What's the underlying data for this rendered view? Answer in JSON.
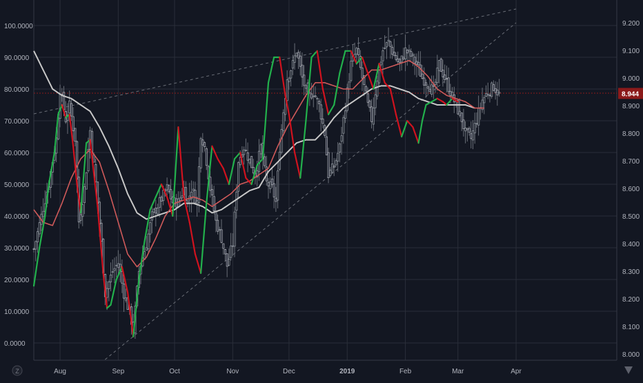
{
  "colors": {
    "background": "#131722",
    "grid": "#2a2e39",
    "axis_text": "#b2b5be",
    "up": "#26a69a",
    "down": "#ef5350",
    "osc_up": "#22b14c",
    "osc_down": "#d1121e",
    "ma_fast": "#d05a5a",
    "ma_slow": "#c8c8c8",
    "trendline": "#6b6f78",
    "hline": "#8b1a1a",
    "price_badge": "#8b1a1a"
  },
  "icons": {
    "left_corner": "z-icon",
    "right_corner": "tradingview-logo-icon"
  },
  "chart_data": {
    "type": "candlestick",
    "x_ticks": [
      {
        "label": "Aug",
        "day": 14
      },
      {
        "label": "Sep",
        "day": 45
      },
      {
        "label": "Oct",
        "day": 75
      },
      {
        "label": "Nov",
        "day": 106
      },
      {
        "label": "Dec",
        "day": 136
      },
      {
        "label": "2019",
        "day": 167,
        "bold": true
      },
      {
        "label": "Feb",
        "day": 198
      },
      {
        "label": "Mar",
        "day": 226
      },
      {
        "label": "Apr",
        "day": 257
      }
    ],
    "left_axis": {
      "ticks": [
        "100.0000",
        "90.0000",
        "80.0000",
        "70.0000",
        "60.0000",
        "50.0000",
        "40.0000",
        "30.0000",
        "20.0000",
        "10.0000",
        "0.0000"
      ],
      "range": [
        -3.5,
        104.5
      ]
    },
    "right_axis": {
      "ticks": [
        "9.200",
        "9.100",
        "9.000",
        "8.900",
        "8.800",
        "8.700",
        "8.600",
        "8.500",
        "8.400",
        "8.300",
        "8.200",
        "8.100",
        "8.000"
      ],
      "range": [
        7.97,
        9.25
      ],
      "last_price_label": "8.944",
      "last_price": 8.944
    },
    "price_anchors": [
      [
        0,
        8.38
      ],
      [
        4,
        8.5
      ],
      [
        8,
        8.62
      ],
      [
        12,
        8.78
      ],
      [
        14,
        8.96
      ],
      [
        17,
        8.85
      ],
      [
        19,
        8.9
      ],
      [
        22,
        8.78
      ],
      [
        24,
        8.48
      ],
      [
        27,
        8.6
      ],
      [
        30,
        8.81
      ],
      [
        33,
        8.62
      ],
      [
        36,
        8.4
      ],
      [
        38,
        8.22
      ],
      [
        42,
        8.3
      ],
      [
        45,
        8.33
      ],
      [
        48,
        8.22
      ],
      [
        51,
        8.15
      ],
      [
        53,
        8.09
      ],
      [
        56,
        8.3
      ],
      [
        60,
        8.4
      ],
      [
        63,
        8.5
      ],
      [
        67,
        8.55
      ],
      [
        71,
        8.6
      ],
      [
        74,
        8.55
      ],
      [
        77,
        8.55
      ],
      [
        80,
        8.6
      ],
      [
        82,
        8.55
      ],
      [
        84,
        8.6
      ],
      [
        87,
        8.55
      ],
      [
        89,
        8.8
      ],
      [
        91,
        8.75
      ],
      [
        94,
        8.6
      ],
      [
        97,
        8.48
      ],
      [
        100,
        8.42
      ],
      [
        103,
        8.32
      ],
      [
        106,
        8.4
      ],
      [
        109,
        8.7
      ],
      [
        112,
        8.75
      ],
      [
        115,
        8.7
      ],
      [
        118,
        8.65
      ],
      [
        121,
        8.75
      ],
      [
        124,
        8.62
      ],
      [
        127,
        8.6
      ],
      [
        129,
        8.55
      ],
      [
        131,
        8.75
      ],
      [
        133,
        8.88
      ],
      [
        135,
        9.0
      ],
      [
        138,
        9.05
      ],
      [
        140,
        9.1
      ],
      [
        143,
        9.0
      ],
      [
        146,
        8.93
      ],
      [
        149,
        8.95
      ],
      [
        152,
        8.9
      ],
      [
        155,
        8.8
      ],
      [
        157,
        8.65
      ],
      [
        160,
        8.68
      ],
      [
        163,
        8.75
      ],
      [
        166,
        8.9
      ],
      [
        169,
        9.05
      ],
      [
        172,
        9.1
      ],
      [
        175,
        9.0
      ],
      [
        178,
        8.9
      ],
      [
        180,
        8.85
      ],
      [
        183,
        9.0
      ],
      [
        186,
        9.1
      ],
      [
        189,
        9.13
      ],
      [
        192,
        9.08
      ],
      [
        195,
        9.05
      ],
      [
        198,
        9.1
      ],
      [
        201,
        9.08
      ],
      [
        204,
        9.05
      ],
      [
        207,
        9.0
      ],
      [
        210,
        8.98
      ],
      [
        213,
        8.95
      ],
      [
        216,
        9.05
      ],
      [
        219,
        9.0
      ],
      [
        222,
        8.95
      ],
      [
        225,
        8.9
      ],
      [
        228,
        8.85
      ],
      [
        230,
        8.8
      ],
      [
        233,
        8.78
      ],
      [
        236,
        8.85
      ],
      [
        239,
        8.92
      ],
      [
        242,
        8.95
      ],
      [
        245,
        8.97
      ],
      [
        248,
        8.94
      ]
    ],
    "oscillator_anchors": [
      [
        0,
        18
      ],
      [
        3,
        30
      ],
      [
        6,
        40
      ],
      [
        8,
        50
      ],
      [
        11,
        60
      ],
      [
        13,
        72
      ],
      [
        15,
        75
      ],
      [
        17,
        71
      ],
      [
        19,
        72
      ],
      [
        21,
        62
      ],
      [
        23,
        50
      ],
      [
        25,
        41
      ],
      [
        28,
        63
      ],
      [
        30,
        64
      ],
      [
        34,
        43
      ],
      [
        37,
        22
      ],
      [
        39,
        11
      ],
      [
        41,
        12
      ],
      [
        44,
        20
      ],
      [
        47,
        24
      ],
      [
        50,
        16
      ],
      [
        53,
        2
      ],
      [
        56,
        20
      ],
      [
        59,
        32
      ],
      [
        62,
        42
      ],
      [
        65,
        46
      ],
      [
        68,
        50
      ],
      [
        71,
        46
      ],
      [
        74,
        40
      ],
      [
        77,
        68
      ],
      [
        80,
        46
      ],
      [
        83,
        38
      ],
      [
        86,
        28
      ],
      [
        89,
        22
      ],
      [
        92,
        44
      ],
      [
        95,
        62
      ],
      [
        98,
        58
      ],
      [
        101,
        55
      ],
      [
        104,
        50
      ],
      [
        107,
        58
      ],
      [
        110,
        60
      ],
      [
        113,
        52
      ],
      [
        116,
        50
      ],
      [
        119,
        56
      ],
      [
        122,
        58
      ],
      [
        125,
        82
      ],
      [
        128,
        90
      ],
      [
        131,
        90
      ],
      [
        134,
        78
      ],
      [
        136,
        72
      ],
      [
        139,
        60
      ],
      [
        142,
        52
      ],
      [
        145,
        70
      ],
      [
        148,
        90
      ],
      [
        151,
        92
      ],
      [
        154,
        80
      ],
      [
        157,
        72
      ],
      [
        160,
        75
      ],
      [
        163,
        85
      ],
      [
        166,
        92
      ],
      [
        169,
        92
      ],
      [
        172,
        88
      ],
      [
        175,
        90
      ],
      [
        178,
        85
      ],
      [
        181,
        80
      ],
      [
        184,
        88
      ],
      [
        187,
        82
      ],
      [
        190,
        80
      ],
      [
        193,
        72
      ],
      [
        196,
        65
      ],
      [
        199,
        70
      ],
      [
        202,
        68
      ],
      [
        205,
        63
      ],
      [
        207,
        70
      ],
      [
        209,
        75
      ],
      [
        212,
        76
      ],
      [
        215,
        77
      ],
      [
        218,
        76
      ],
      [
        220,
        75
      ],
      [
        223,
        77
      ],
      [
        226,
        76
      ]
    ],
    "ma_fast_anchors": [
      [
        0,
        42
      ],
      [
        5,
        38
      ],
      [
        10,
        37
      ],
      [
        15,
        44
      ],
      [
        20,
        52
      ],
      [
        25,
        58
      ],
      [
        30,
        61
      ],
      [
        35,
        57
      ],
      [
        40,
        48
      ],
      [
        45,
        38
      ],
      [
        50,
        28
      ],
      [
        55,
        24
      ],
      [
        60,
        27
      ],
      [
        65,
        33
      ],
      [
        70,
        40
      ],
      [
        75,
        44
      ],
      [
        80,
        45
      ],
      [
        85,
        46
      ],
      [
        90,
        45
      ],
      [
        95,
        43
      ],
      [
        100,
        45
      ],
      [
        105,
        47
      ],
      [
        110,
        50
      ],
      [
        115,
        51
      ],
      [
        120,
        53
      ],
      [
        125,
        55
      ],
      [
        130,
        62
      ],
      [
        135,
        68
      ],
      [
        140,
        73
      ],
      [
        145,
        78
      ],
      [
        150,
        82
      ],
      [
        155,
        82
      ],
      [
        160,
        81
      ],
      [
        165,
        80
      ],
      [
        170,
        80
      ],
      [
        175,
        83
      ],
      [
        180,
        86
      ],
      [
        185,
        86
      ],
      [
        190,
        87
      ],
      [
        195,
        88
      ],
      [
        200,
        89
      ],
      [
        205,
        87
      ],
      [
        210,
        84
      ],
      [
        215,
        80
      ],
      [
        220,
        78
      ],
      [
        225,
        77
      ],
      [
        230,
        76
      ],
      [
        235,
        74
      ],
      [
        240,
        74
      ]
    ],
    "ma_slow_anchors": [
      [
        0,
        92
      ],
      [
        5,
        86
      ],
      [
        10,
        80
      ],
      [
        15,
        78
      ],
      [
        20,
        77
      ],
      [
        25,
        75
      ],
      [
        30,
        73
      ],
      [
        35,
        68
      ],
      [
        40,
        62
      ],
      [
        45,
        55
      ],
      [
        50,
        47
      ],
      [
        55,
        41
      ],
      [
        60,
        39
      ],
      [
        65,
        40
      ],
      [
        70,
        41
      ],
      [
        75,
        42
      ],
      [
        80,
        44
      ],
      [
        85,
        44
      ],
      [
        90,
        43
      ],
      [
        95,
        41
      ],
      [
        100,
        42
      ],
      [
        105,
        44
      ],
      [
        110,
        46
      ],
      [
        115,
        48
      ],
      [
        120,
        49
      ],
      [
        125,
        54
      ],
      [
        130,
        57
      ],
      [
        135,
        60
      ],
      [
        140,
        63
      ],
      [
        145,
        64
      ],
      [
        150,
        64
      ],
      [
        155,
        67
      ],
      [
        160,
        71
      ],
      [
        165,
        74
      ],
      [
        170,
        76
      ],
      [
        175,
        78
      ],
      [
        180,
        80
      ],
      [
        185,
        81
      ],
      [
        190,
        81
      ],
      [
        195,
        80
      ],
      [
        200,
        79
      ],
      [
        205,
        77
      ],
      [
        210,
        76
      ],
      [
        215,
        75
      ],
      [
        220,
        75
      ],
      [
        225,
        75
      ],
      [
        230,
        75
      ],
      [
        235,
        74
      ]
    ],
    "trendlines": [
      {
        "type": "dashed",
        "from": [
          0,
          8.87
        ],
        "to": [
          257,
          9.25
        ]
      },
      {
        "type": "dashed",
        "from": [
          38,
          7.98
        ],
        "to": [
          257,
          9.2
        ]
      }
    ],
    "horizontal_line": 8.945,
    "grid": true
  }
}
